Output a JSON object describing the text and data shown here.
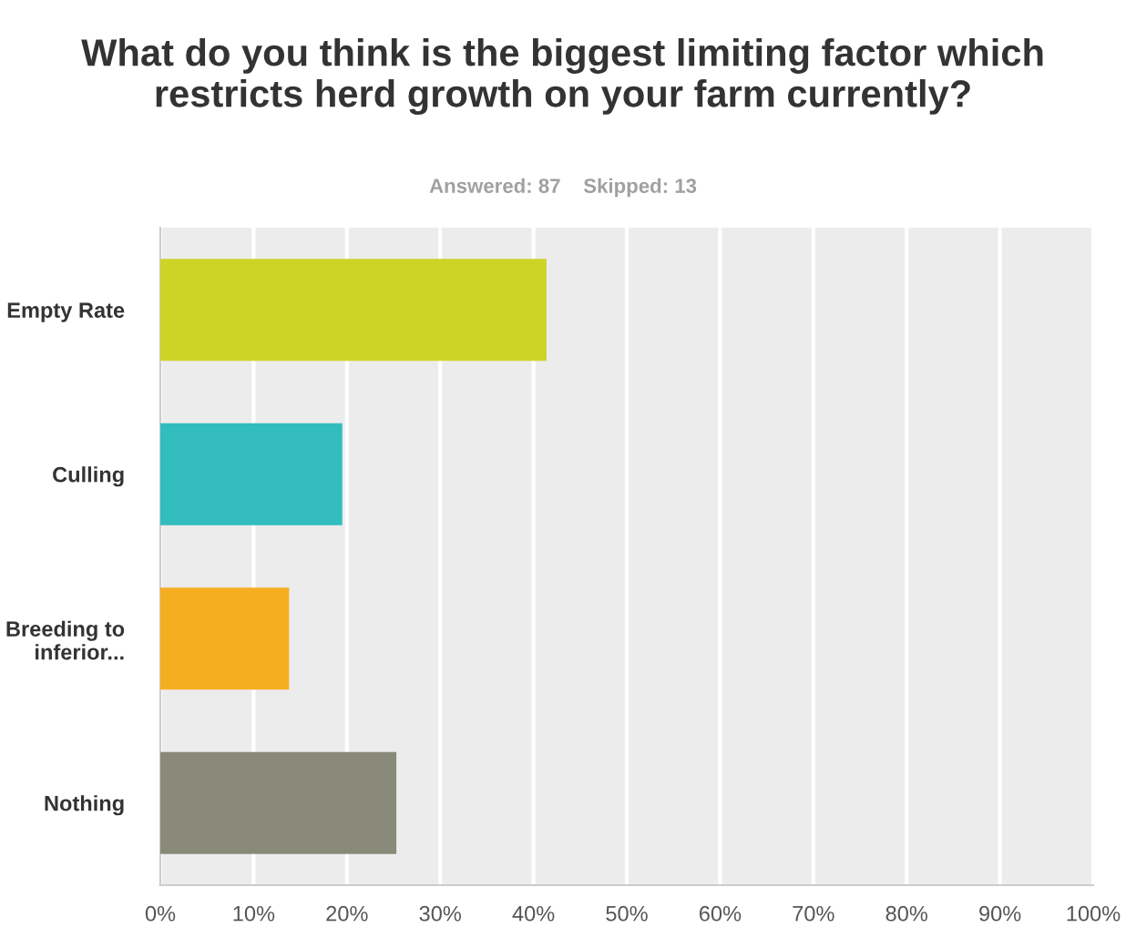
{
  "chart_data": {
    "type": "bar",
    "orientation": "horizontal",
    "title": "What do you think is the biggest limiting factor which restricts herd growth on your farm currently?",
    "subtitle": "Answered: 87    Skipped: 13",
    "categories": [
      "Empty Rate",
      "Culling",
      "Breeding to\ninferior...",
      "Nothing"
    ],
    "values": [
      41.4,
      19.5,
      13.8,
      25.3
    ],
    "colors": [
      "#cdd426",
      "#33bcbd",
      "#f6ae21",
      "#898a7a"
    ],
    "xlim": [
      0,
      100
    ],
    "xticks": [
      {
        "value": 0,
        "label": "0%"
      },
      {
        "value": 10,
        "label": "10%"
      },
      {
        "value": 20,
        "label": "20%"
      },
      {
        "value": 30,
        "label": "30%"
      },
      {
        "value": 40,
        "label": "40%"
      },
      {
        "value": 50,
        "label": "50%"
      },
      {
        "value": 60,
        "label": "60%"
      },
      {
        "value": 70,
        "label": "70%"
      },
      {
        "value": 80,
        "label": "80%"
      },
      {
        "value": 90,
        "label": "90%"
      },
      {
        "value": 100,
        "label": "100%"
      }
    ],
    "grid": "x"
  }
}
